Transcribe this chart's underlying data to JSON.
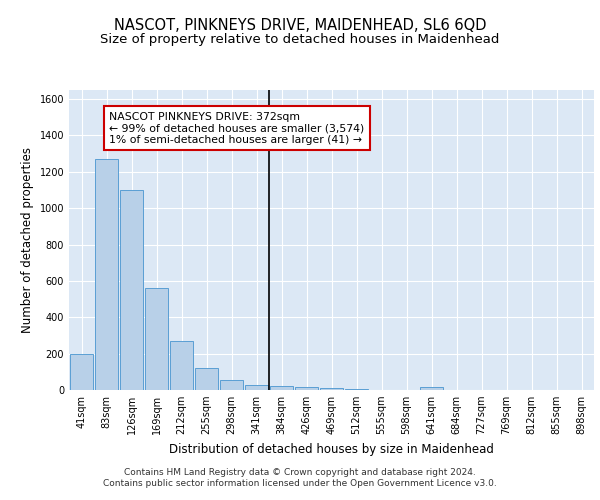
{
  "title": "NASCOT, PINKNEYS DRIVE, MAIDENHEAD, SL6 6QD",
  "subtitle": "Size of property relative to detached houses in Maidenhead",
  "xlabel": "Distribution of detached houses by size in Maidenhead",
  "ylabel": "Number of detached properties",
  "footer_line1": "Contains HM Land Registry data © Crown copyright and database right 2024.",
  "footer_line2": "Contains public sector information licensed under the Open Government Licence v3.0.",
  "bar_labels": [
    "41sqm",
    "83sqm",
    "126sqm",
    "169sqm",
    "212sqm",
    "255sqm",
    "298sqm",
    "341sqm",
    "384sqm",
    "426sqm",
    "469sqm",
    "512sqm",
    "555sqm",
    "598sqm",
    "641sqm",
    "684sqm",
    "727sqm",
    "769sqm",
    "812sqm",
    "855sqm",
    "898sqm"
  ],
  "bar_values": [
    200,
    1270,
    1100,
    560,
    270,
    120,
    55,
    30,
    20,
    15,
    10,
    5,
    0,
    0,
    15,
    0,
    0,
    0,
    0,
    0,
    0
  ],
  "bar_color": "#b8d0e8",
  "bar_edge_color": "#5a9fd4",
  "property_line_index": 8,
  "annotation_text": "NASCOT PINKNEYS DRIVE: 372sqm\n← 99% of detached houses are smaller (3,574)\n1% of semi-detached houses are larger (41) →",
  "annotation_box_color": "#ffffff",
  "annotation_box_edge_color": "#cc0000",
  "vline_color": "#000000",
  "ylim": [
    0,
    1650
  ],
  "yticks": [
    0,
    200,
    400,
    600,
    800,
    1000,
    1200,
    1400,
    1600
  ],
  "background_color": "#dce8f5",
  "grid_color": "#ffffff",
  "title_fontsize": 10.5,
  "subtitle_fontsize": 9.5,
  "axis_label_fontsize": 8.5,
  "tick_fontsize": 7,
  "footer_fontsize": 6.5,
  "annotation_fontsize": 7.8
}
